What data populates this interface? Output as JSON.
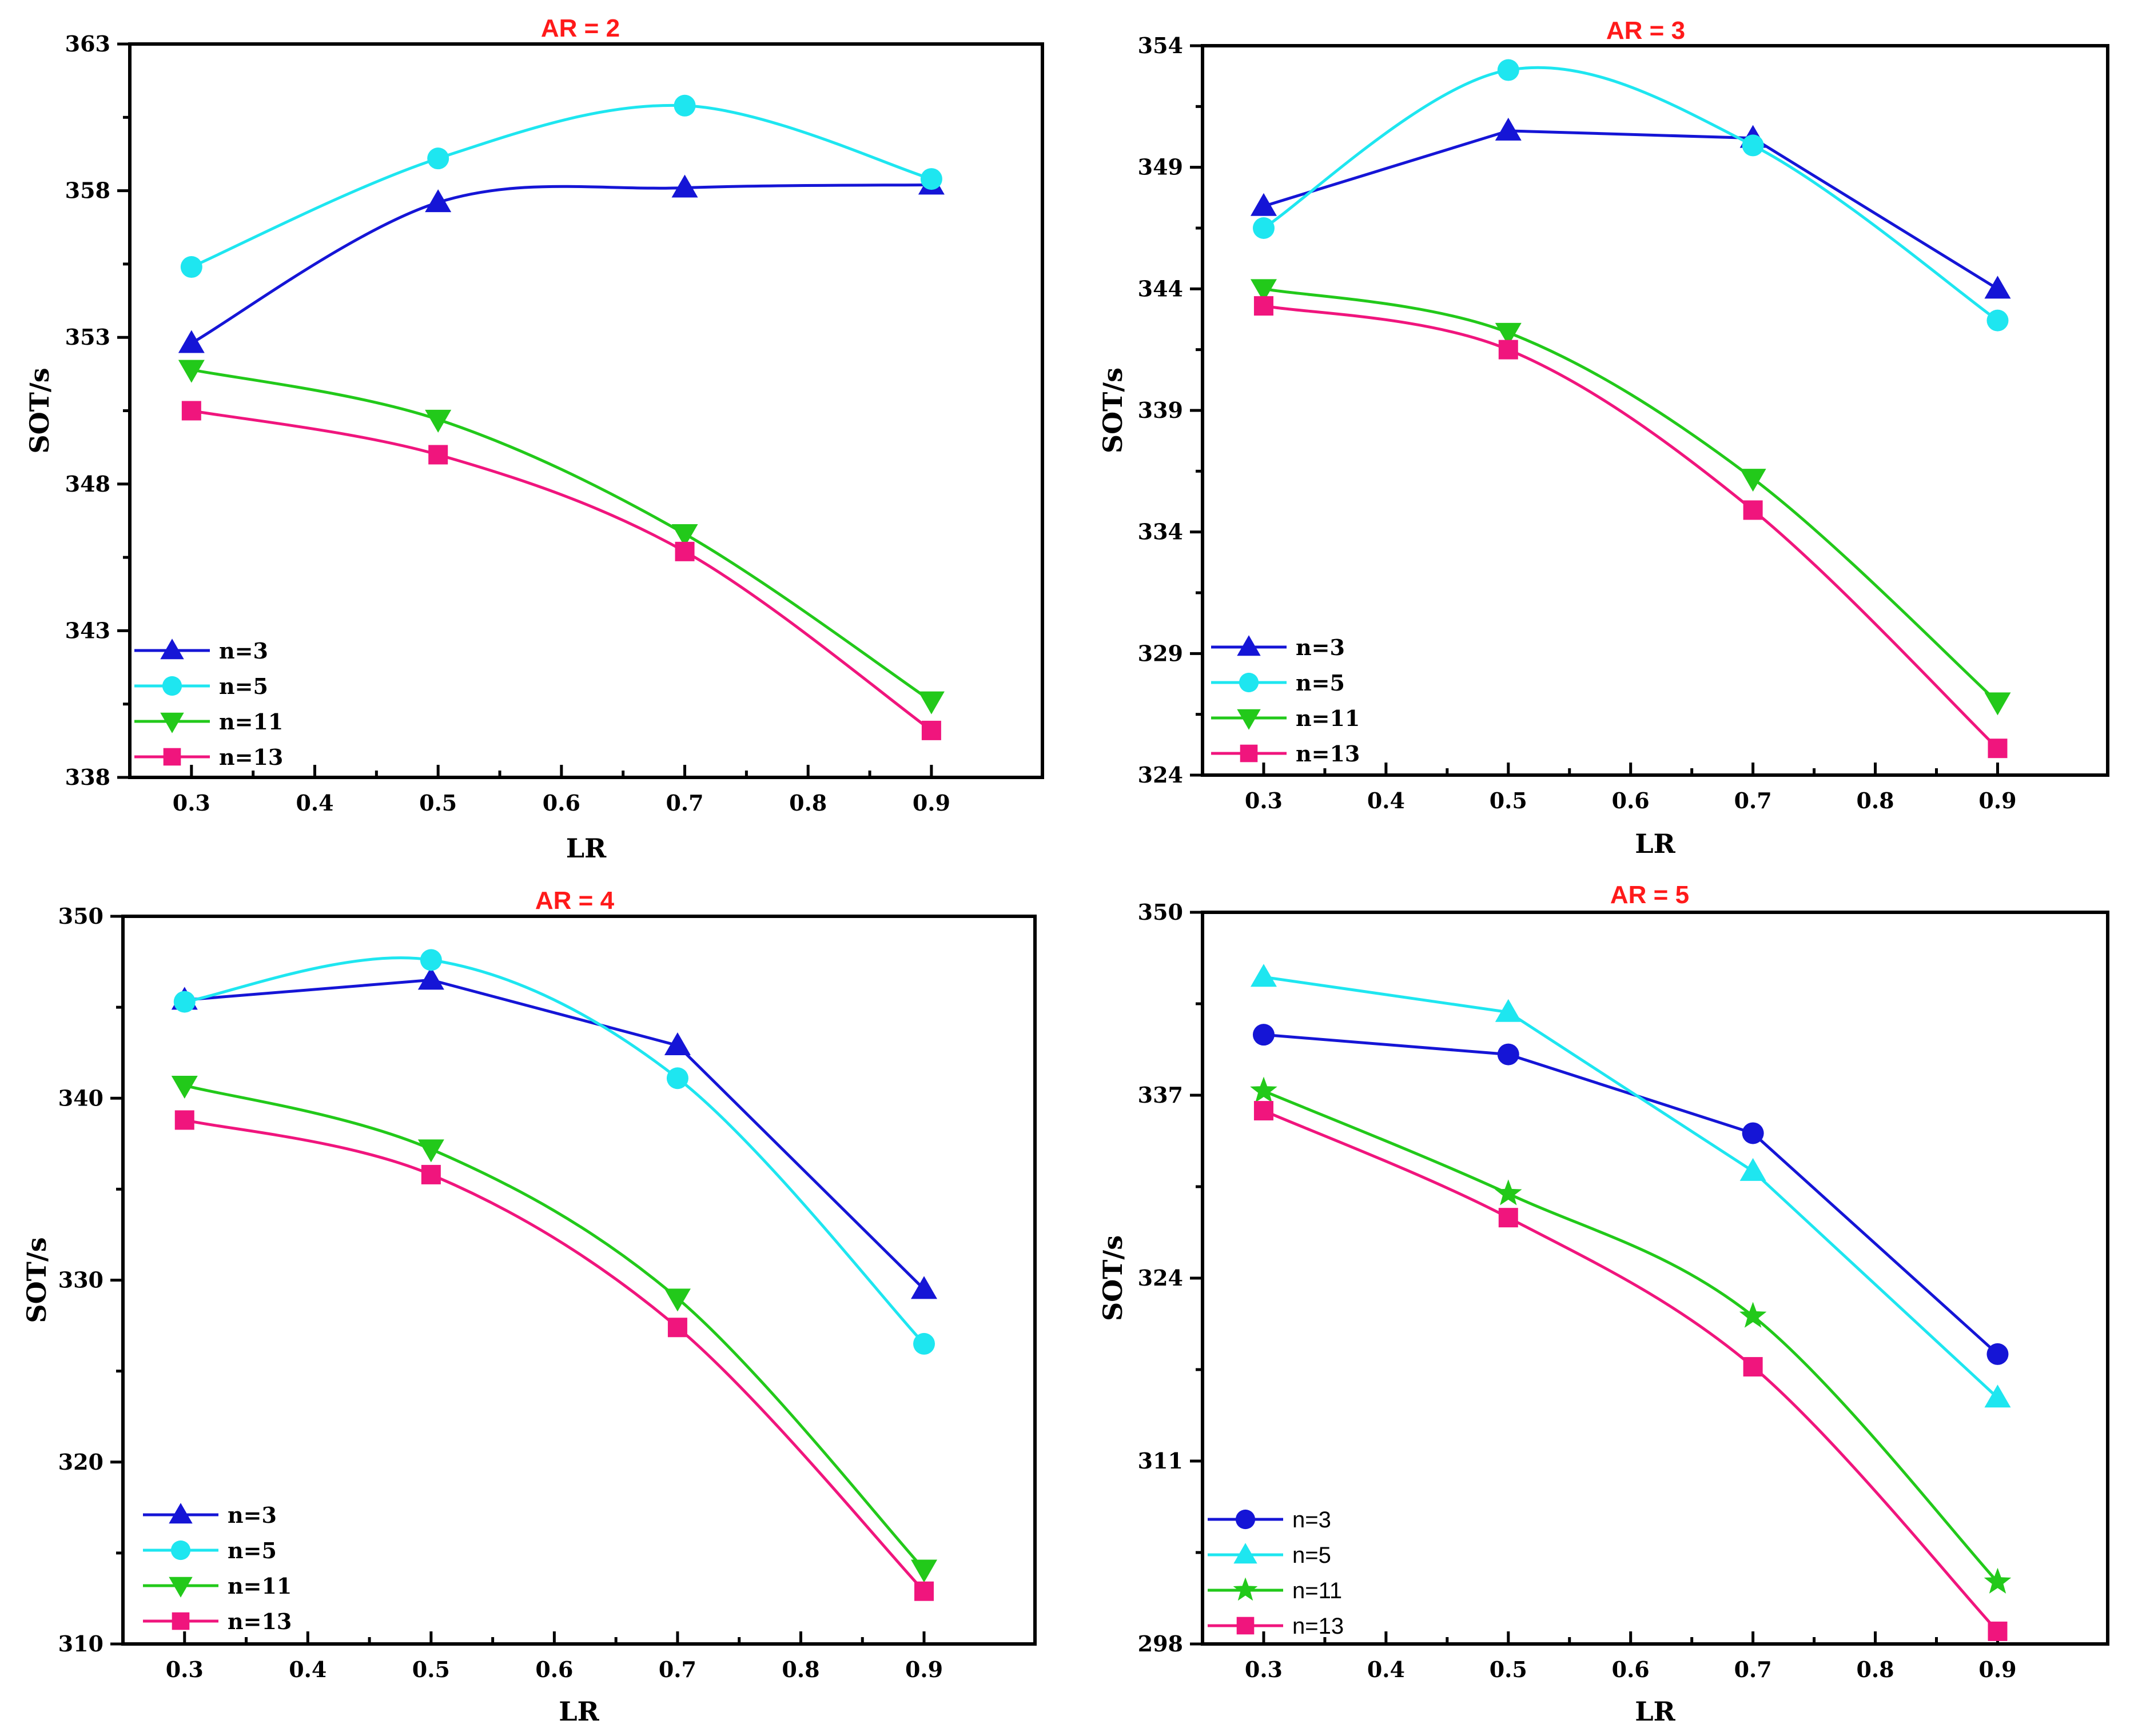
{
  "chart_data": [
    {
      "type": "line",
      "title": "AR = 2",
      "xlabel": "LR",
      "ylabel": "SOT/s",
      "xlim": [
        0.25,
        0.99
      ],
      "ylim": [
        338,
        363
      ],
      "xticks": [
        0.3,
        0.4,
        0.5,
        0.6,
        0.7,
        0.8,
        0.9
      ],
      "xtick_labels": [
        "0.3",
        "0.4",
        "0.5",
        "0.6",
        "0.7",
        "0.8",
        "0.9"
      ],
      "yticks": [
        338,
        343,
        348,
        353,
        358,
        363
      ],
      "ytick_labels": [
        "338",
        "343",
        "348",
        "353",
        "358",
        "363"
      ],
      "legend_position": "bottom-left",
      "legend_style": "bold",
      "series": [
        {
          "name": "n=3",
          "color": "#1515d6",
          "marker": "triangle-up",
          "smooth": true,
          "x": [
            0.3,
            0.5,
            0.7,
            0.9
          ],
          "values": [
            352.8,
            357.6,
            358.1,
            358.2
          ]
        },
        {
          "name": "n=5",
          "color": "#1ee6f0",
          "marker": "circle",
          "smooth": true,
          "x": [
            0.3,
            0.5,
            0.7,
            0.9
          ],
          "values": [
            355.4,
            359.1,
            360.9,
            358.4
          ]
        },
        {
          "name": "n=11",
          "color": "#22c91a",
          "marker": "triangle-down",
          "smooth": true,
          "x": [
            0.3,
            0.5,
            0.7,
            0.9
          ],
          "values": [
            351.9,
            350.2,
            346.3,
            340.6
          ]
        },
        {
          "name": "n=13",
          "color": "#f0157d",
          "marker": "square",
          "smooth": true,
          "x": [
            0.3,
            0.5,
            0.7,
            0.9
          ],
          "values": [
            350.5,
            349.0,
            345.7,
            339.6
          ]
        }
      ]
    },
    {
      "type": "line",
      "title": "AR = 3",
      "xlabel": "LR",
      "ylabel": "SOT/s",
      "xlim": [
        0.25,
        0.99
      ],
      "ylim": [
        324,
        354
      ],
      "xticks": [
        0.3,
        0.4,
        0.5,
        0.6,
        0.7,
        0.8,
        0.9
      ],
      "xtick_labels": [
        "0.3",
        "0.4",
        "0.5",
        "0.6",
        "0.7",
        "0.8",
        "0.9"
      ],
      "yticks": [
        324,
        329,
        334,
        339,
        344,
        349,
        354
      ],
      "ytick_labels": [
        "324",
        "329",
        "334",
        "339",
        "344",
        "349",
        "354"
      ],
      "legend_position": "bottom-left",
      "legend_style": "bold",
      "series": [
        {
          "name": "n=3",
          "color": "#1515d6",
          "marker": "triangle-up",
          "smooth": false,
          "x": [
            0.3,
            0.5,
            0.7,
            0.9
          ],
          "values": [
            347.4,
            350.5,
            350.2,
            344.0
          ]
        },
        {
          "name": "n=5",
          "color": "#1ee6f0",
          "marker": "circle",
          "smooth": true,
          "x": [
            0.3,
            0.5,
            0.7,
            0.9
          ],
          "values": [
            346.5,
            353.0,
            349.9,
            342.7
          ]
        },
        {
          "name": "n=11",
          "color": "#22c91a",
          "marker": "triangle-down",
          "smooth": true,
          "x": [
            0.3,
            0.5,
            0.7,
            0.9
          ],
          "values": [
            344.0,
            342.2,
            336.2,
            327.0
          ]
        },
        {
          "name": "n=13",
          "color": "#f0157d",
          "marker": "square",
          "smooth": true,
          "x": [
            0.3,
            0.5,
            0.7,
            0.9
          ],
          "values": [
            343.3,
            341.5,
            334.9,
            325.1
          ]
        }
      ]
    },
    {
      "type": "line",
      "title": "AR = 4",
      "xlabel": "LR",
      "ylabel": "SOT/s",
      "xlim": [
        0.25,
        0.99
      ],
      "ylim": [
        310,
        350
      ],
      "xticks": [
        0.3,
        0.4,
        0.5,
        0.6,
        0.7,
        0.8,
        0.9
      ],
      "xtick_labels": [
        "0.3",
        "0.4",
        "0.5",
        "0.6",
        "0.7",
        "0.8",
        "0.9"
      ],
      "yticks": [
        310,
        320,
        330,
        340,
        350
      ],
      "ytick_labels": [
        "310",
        "320",
        "330",
        "340",
        "350"
      ],
      "legend_position": "bottom-left",
      "legend_style": "bold",
      "series": [
        {
          "name": "n=3",
          "color": "#1515d6",
          "marker": "triangle-up",
          "smooth": false,
          "x": [
            0.3,
            0.5,
            0.7,
            0.9
          ],
          "values": [
            345.4,
            346.5,
            342.9,
            329.5
          ]
        },
        {
          "name": "n=5",
          "color": "#1ee6f0",
          "marker": "circle",
          "smooth": true,
          "x": [
            0.3,
            0.5,
            0.7,
            0.9
          ],
          "values": [
            345.3,
            347.6,
            341.1,
            326.5
          ]
        },
        {
          "name": "n=11",
          "color": "#22c91a",
          "marker": "triangle-down",
          "smooth": true,
          "x": [
            0.3,
            0.5,
            0.7,
            0.9
          ],
          "values": [
            340.7,
            337.2,
            329.0,
            314.1
          ]
        },
        {
          "name": "n=13",
          "color": "#f0157d",
          "marker": "square",
          "smooth": true,
          "x": [
            0.3,
            0.5,
            0.7,
            0.9
          ],
          "values": [
            338.8,
            335.8,
            327.4,
            312.9
          ]
        }
      ]
    },
    {
      "type": "line",
      "title": "AR = 5",
      "xlabel": "LR",
      "ylabel": "SOT/s",
      "xlim": [
        0.25,
        0.99
      ],
      "ylim": [
        298,
        350
      ],
      "xticks": [
        0.3,
        0.4,
        0.5,
        0.6,
        0.7,
        0.8,
        0.9
      ],
      "xtick_labels": [
        "0.3",
        "0.4",
        "0.5",
        "0.6",
        "0.7",
        "0.8",
        "0.9"
      ],
      "yticks": [
        298,
        311,
        324,
        337,
        350
      ],
      "ytick_labels": [
        "298",
        "311",
        "324",
        "337",
        "350"
      ],
      "legend_position": "bottom-left",
      "legend_style": "plain",
      "series": [
        {
          "name": "n=3",
          "color": "#1515d6",
          "marker": "circle",
          "smooth": false,
          "x": [
            0.3,
            0.5,
            0.7,
            0.9
          ],
          "values": [
            341.3,
            339.9,
            334.3,
            318.6
          ]
        },
        {
          "name": "n=5",
          "color": "#1ee6f0",
          "marker": "triangle-up",
          "smooth": false,
          "x": [
            0.3,
            0.5,
            0.7,
            0.9
          ],
          "values": [
            345.4,
            342.9,
            331.6,
            315.5
          ]
        },
        {
          "name": "n=11",
          "color": "#22c91a",
          "marker": "star",
          "smooth": true,
          "x": [
            0.3,
            0.5,
            0.7,
            0.9
          ],
          "values": [
            337.3,
            330.0,
            321.3,
            302.4
          ]
        },
        {
          "name": "n=13",
          "color": "#f0157d",
          "marker": "square",
          "smooth": true,
          "x": [
            0.3,
            0.5,
            0.7,
            0.9
          ],
          "values": [
            335.9,
            328.3,
            317.7,
            298.9
          ]
        }
      ]
    }
  ]
}
